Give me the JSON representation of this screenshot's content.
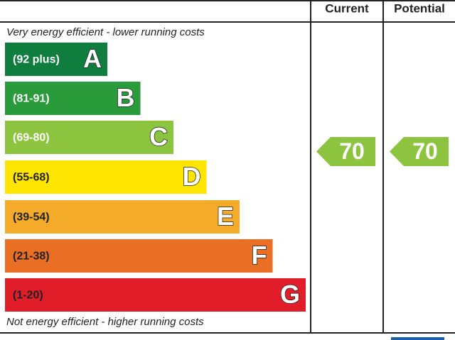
{
  "header": {
    "columns": [
      "Current",
      "Potential"
    ]
  },
  "top_note": "Very energy efficient - lower running costs",
  "bottom_note": "Not energy efficient - higher running costs",
  "bands": [
    {
      "range": "(92 plus)",
      "letter": "A",
      "color": "#0e7d3e"
    },
    {
      "range": "(81-91)",
      "letter": "B",
      "color": "#2a9b3a"
    },
    {
      "range": "(69-80)",
      "letter": "C",
      "color": "#8cc43f"
    },
    {
      "range": "(55-68)",
      "letter": "D",
      "color": "#ffe500"
    },
    {
      "range": "(39-54)",
      "letter": "E",
      "color": "#f5ab2a"
    },
    {
      "range": "(21-38)",
      "letter": "F",
      "color": "#ea6e24"
    },
    {
      "range": "(1-20)",
      "letter": "G",
      "color": "#e11d2a"
    }
  ],
  "ratings": [
    {
      "value": 70,
      "color": "#8cc43f"
    },
    {
      "value": 70,
      "color": "#8cc43f"
    }
  ]
}
